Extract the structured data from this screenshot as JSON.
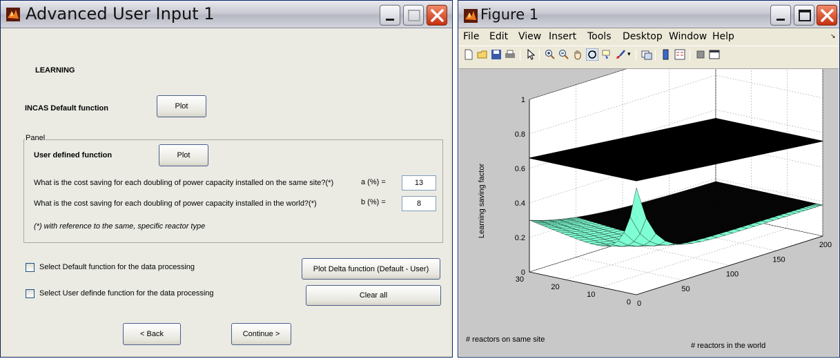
{
  "window1": {
    "title": "Advanced User Input 1",
    "section_heading": "LEARNING",
    "default_function_label": "INCAS Default function",
    "default_plot_button": "Plot",
    "panel_title": "Panel",
    "user_function_label": "User defined function",
    "user_plot_button": "Plot",
    "question_a": "What is the cost saving for each doubling of power capacity installed on the same site?(*)",
    "field_a_label": "a (%) =",
    "field_a_value": "13",
    "question_b": "What is the cost saving for each doubling of power capacity installed in the world?(*)",
    "field_b_label": "b (%) =",
    "field_b_value": "8",
    "footnote": "(*) with reference to the same, specific reactor type",
    "check_default_label": "Select Default function for the data processing",
    "check_default_checked": false,
    "check_user_label": "Select User definde function for the data processing",
    "check_user_checked": false,
    "plot_delta_button": "Plot Delta function (Default - User)",
    "clear_all_button": "Clear all",
    "back_button": "< Back",
    "continue_button": "Continue >"
  },
  "window2": {
    "title": "Figure 1",
    "menu": [
      "File",
      "Edit",
      "View",
      "Insert",
      "Tools",
      "Desktop",
      "Window",
      "Help"
    ],
    "toolbar_icons": [
      "new-figure-icon",
      "open-file-icon",
      "save-icon",
      "print-icon",
      "pointer-icon",
      "zoom-in-icon",
      "zoom-out-icon",
      "pan-icon",
      "rotate-3d-icon",
      "data-cursor-icon",
      "brush-icon",
      "link-plot-icon",
      "colorbar-icon",
      "legend-icon",
      "hide-plot-tools-icon",
      "show-plot-tools-icon"
    ]
  },
  "chart_data": {
    "type": "surface",
    "xlabel": "# reactors on same site",
    "ylabel": "# reactors in the world",
    "zlabel": "Learning saving factor",
    "x_ticks": [
      "0",
      "10",
      "20",
      "30"
    ],
    "y_ticks": [
      "0",
      "50",
      "100",
      "150",
      "200"
    ],
    "z_ticks": [
      "0",
      "0.2",
      "0.4",
      "0.6",
      "0.8",
      "1"
    ],
    "xlim": [
      0,
      30
    ],
    "ylim": [
      0,
      200
    ],
    "zlim": [
      0,
      1
    ],
    "series": [
      {
        "surface": "upper",
        "color": "#000000",
        "approx_z_range": [
          0.55,
          0.66
        ]
      },
      {
        "surface": "lower",
        "color": "#7fffd4",
        "approx_z_range": [
          0.18,
          0.62
        ]
      }
    ],
    "grid": true
  }
}
